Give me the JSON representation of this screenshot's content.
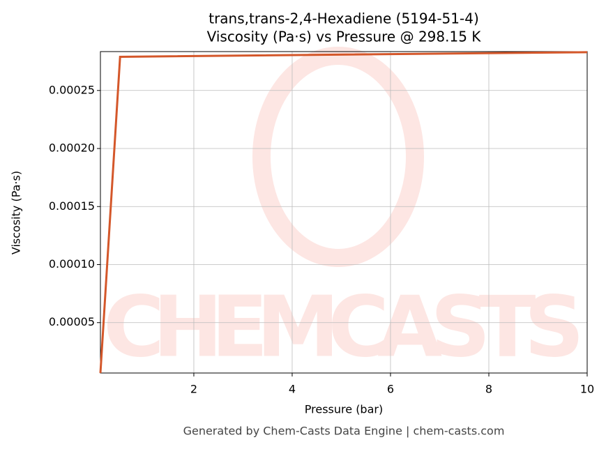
{
  "chart_data": {
    "type": "line",
    "title": "trans,trans-2,4-Hexadiene (5194-51-4)",
    "subtitle": "Viscosity (Pa·s) vs Pressure @ 298.15 K",
    "x_label": "Pressure (bar)",
    "y_label": "Viscosity (Pa·s)",
    "watermark": "CHEMCASTS",
    "footer": "Generated by Chem-Casts Data Engine | chem-casts.com",
    "x": [
      0.1,
      0.5,
      10
    ],
    "series": [
      {
        "name": "Viscosity",
        "color": "#d4572a",
        "values": [
          6.6e-06,
          0.000279,
          0.000283
        ]
      }
    ],
    "xlim": [
      0.1,
      10
    ],
    "xticks": [
      2,
      4,
      6,
      8,
      10
    ],
    "ylim": [
      6.6e-06,
      0.0002835
    ],
    "yticks": [
      5e-05,
      {
        "value": 0.0001,
        "label": "0.00010"
      },
      0.00015,
      {
        "value": 0.0002,
        "label": "0.00020"
      },
      0.00025
    ],
    "grid": true
  }
}
